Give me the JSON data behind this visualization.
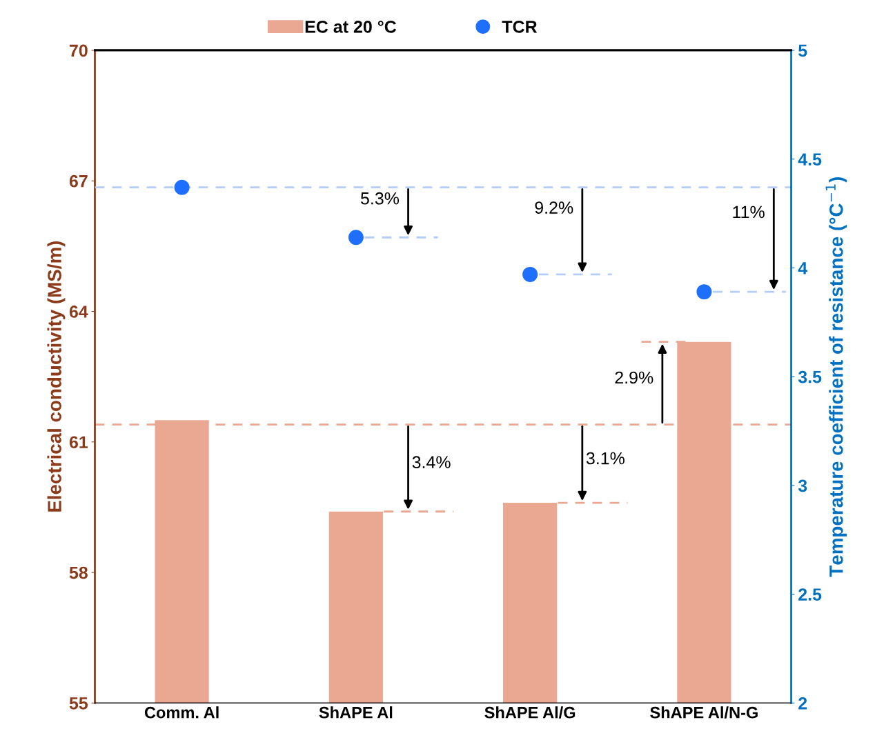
{
  "chart_data": {
    "type": "bar",
    "categories": [
      "Comm. Al",
      "ShAPE Al",
      "ShAPE Al/G",
      "ShAPE Al/N-G"
    ],
    "ylabel": "Electrical conductivity (MS/m)",
    "y2label": "Temperature coefficient of resistance (°C$^{−1}$)",
    "series": [
      {
        "name": "EC at 20 °C",
        "color": "#eaa892",
        "values": [
          61.5,
          59.4,
          59.6,
          63.3
        ]
      },
      {
        "name": "TCR",
        "type": "scatter",
        "axis": "y2",
        "color": "#1f6fff",
        "values": [
          4.37,
          4.14,
          3.97,
          3.89
        ]
      }
    ],
    "ylim": [
      55,
      70
    ],
    "yticks": [
      55,
      58,
      61,
      64,
      67,
      70
    ],
    "y2lim": [
      2,
      5
    ],
    "y2ticks": [
      2,
      2.5,
      3,
      3.5,
      4,
      4.5,
      5
    ],
    "ref_lines": [
      {
        "axis": "y",
        "value": 61.4,
        "color": "#eaa892",
        "line_style": "dashed"
      },
      {
        "axis": "y2",
        "value": 4.37,
        "color": "#b4cdf8",
        "line_style": "dashed"
      }
    ],
    "annotations": [
      "3.4%",
      "3.1%",
      "2.9%",
      "5.3%",
      "9.2%",
      "11%"
    ],
    "marker": "circle",
    "grid": false,
    "legend": "top"
  }
}
